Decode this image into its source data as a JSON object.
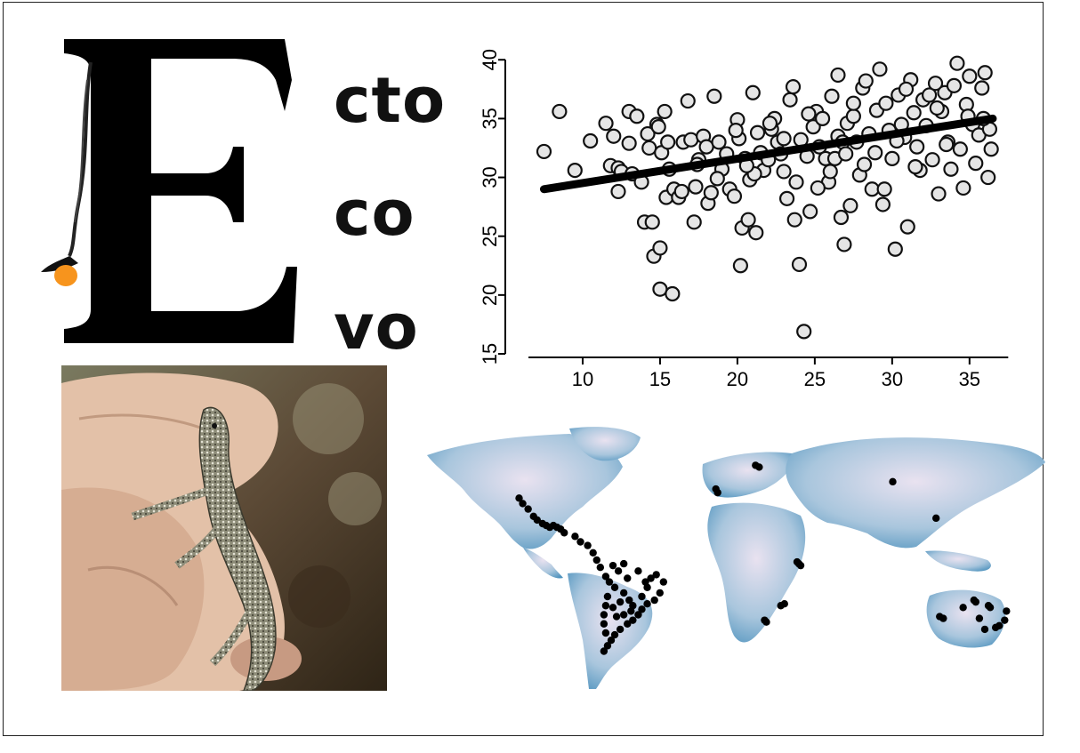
{
  "logo": {
    "letter": "E",
    "words": [
      "cto",
      "co",
      "vo"
    ]
  },
  "chart_data": {
    "type": "scatter",
    "xlim": [
      5,
      38
    ],
    "ylim": [
      15,
      41
    ],
    "xticks": [
      10,
      15,
      20,
      25,
      30,
      35
    ],
    "yticks": [
      15,
      20,
      25,
      30,
      35,
      40
    ],
    "trendline": {
      "x": [
        7.5,
        36.5
      ],
      "y": [
        29.0,
        35.0
      ]
    },
    "points": [
      [
        7.5,
        32.2
      ],
      [
        8.5,
        35.6
      ],
      [
        9.5,
        30.6
      ],
      [
        10.5,
        33.1
      ],
      [
        11.5,
        34.6
      ],
      [
        11.8,
        31.0
      ],
      [
        12.0,
        33.5
      ],
      [
        12.3,
        30.8
      ],
      [
        12.3,
        28.8
      ],
      [
        12.5,
        30.5
      ],
      [
        13.0,
        35.6
      ],
      [
        13.0,
        32.9
      ],
      [
        13.2,
        30.3
      ],
      [
        13.5,
        35.2
      ],
      [
        13.8,
        29.6
      ],
      [
        14.0,
        26.2
      ],
      [
        14.2,
        33.7
      ],
      [
        14.3,
        32.5
      ],
      [
        14.5,
        26.2
      ],
      [
        14.6,
        23.3
      ],
      [
        14.8,
        34.5
      ],
      [
        14.9,
        34.3
      ],
      [
        15.0,
        24.0
      ],
      [
        15.0,
        20.5
      ],
      [
        15.1,
        32.1
      ],
      [
        15.3,
        35.6
      ],
      [
        15.4,
        28.3
      ],
      [
        15.5,
        33.0
      ],
      [
        15.6,
        30.7
      ],
      [
        15.8,
        20.1
      ],
      [
        15.9,
        29.0
      ],
      [
        16.2,
        28.3
      ],
      [
        16.5,
        33.0
      ],
      [
        16.8,
        36.5
      ],
      [
        17.0,
        33.2
      ],
      [
        17.2,
        26.2
      ],
      [
        17.3,
        29.2
      ],
      [
        17.5,
        31.5
      ],
      [
        17.8,
        33.5
      ],
      [
        18.0,
        32.6
      ],
      [
        18.1,
        27.8
      ],
      [
        18.3,
        28.7
      ],
      [
        18.5,
        36.9
      ],
      [
        18.8,
        33.0
      ],
      [
        19.0,
        30.7
      ],
      [
        19.3,
        32.0
      ],
      [
        19.5,
        29.0
      ],
      [
        19.8,
        28.4
      ],
      [
        20.0,
        34.9
      ],
      [
        20.1,
        33.3
      ],
      [
        20.2,
        22.5
      ],
      [
        20.3,
        25.7
      ],
      [
        20.5,
        31.6
      ],
      [
        20.7,
        26.4
      ],
      [
        20.8,
        29.8
      ],
      [
        21.0,
        37.2
      ],
      [
        21.2,
        25.3
      ],
      [
        21.3,
        33.8
      ],
      [
        21.5,
        32.1
      ],
      [
        21.7,
        30.6
      ],
      [
        22.0,
        31.5
      ],
      [
        22.2,
        34.1
      ],
      [
        22.4,
        35.0
      ],
      [
        22.6,
        33.0
      ],
      [
        22.8,
        32.0
      ],
      [
        23.0,
        30.5
      ],
      [
        23.2,
        28.2
      ],
      [
        23.4,
        36.6
      ],
      [
        23.6,
        37.7
      ],
      [
        23.7,
        26.4
      ],
      [
        23.8,
        29.6
      ],
      [
        24.0,
        22.6
      ],
      [
        24.1,
        33.2
      ],
      [
        24.3,
        16.9
      ],
      [
        24.5,
        31.8
      ],
      [
        24.7,
        27.1
      ],
      [
        24.9,
        34.3
      ],
      [
        25.1,
        35.6
      ],
      [
        25.3,
        32.6
      ],
      [
        25.5,
        35.0
      ],
      [
        25.7,
        31.6
      ],
      [
        25.9,
        29.6
      ],
      [
        26.1,
        36.9
      ],
      [
        26.3,
        31.6
      ],
      [
        26.5,
        33.5
      ],
      [
        26.7,
        26.6
      ],
      [
        26.9,
        24.3
      ],
      [
        27.1,
        34.6
      ],
      [
        27.3,
        27.6
      ],
      [
        27.5,
        35.2
      ],
      [
        27.7,
        33.0
      ],
      [
        27.9,
        30.2
      ],
      [
        28.1,
        37.6
      ],
      [
        28.3,
        38.2
      ],
      [
        28.5,
        33.7
      ],
      [
        28.7,
        29.0
      ],
      [
        28.9,
        32.1
      ],
      [
        29.0,
        35.7
      ],
      [
        29.2,
        39.2
      ],
      [
        29.4,
        27.7
      ],
      [
        29.6,
        36.3
      ],
      [
        29.8,
        34.0
      ],
      [
        30.0,
        31.6
      ],
      [
        30.2,
        23.9
      ],
      [
        30.4,
        37.0
      ],
      [
        30.6,
        34.5
      ],
      [
        30.8,
        33.4
      ],
      [
        31.0,
        25.8
      ],
      [
        31.2,
        38.3
      ],
      [
        31.4,
        35.5
      ],
      [
        31.6,
        32.6
      ],
      [
        31.8,
        30.6
      ],
      [
        32.0,
        36.6
      ],
      [
        32.2,
        34.4
      ],
      [
        32.4,
        37.0
      ],
      [
        32.6,
        31.5
      ],
      [
        32.8,
        38.0
      ],
      [
        33.0,
        28.6
      ],
      [
        33.2,
        35.6
      ],
      [
        33.4,
        37.2
      ],
      [
        33.6,
        33.0
      ],
      [
        33.8,
        30.7
      ],
      [
        34.0,
        37.8
      ],
      [
        34.2,
        39.7
      ],
      [
        34.4,
        32.4
      ],
      [
        34.6,
        29.1
      ],
      [
        34.8,
        36.2
      ],
      [
        35.0,
        38.6
      ],
      [
        35.2,
        34.5
      ],
      [
        35.4,
        31.2
      ],
      [
        35.6,
        33.6
      ],
      [
        35.8,
        37.6
      ],
      [
        36.0,
        38.9
      ],
      [
        36.2,
        30.0
      ],
      [
        36.3,
        34.1
      ],
      [
        36.4,
        32.4
      ],
      [
        26.5,
        38.7
      ],
      [
        26.0,
        30.5
      ],
      [
        27.5,
        36.3
      ],
      [
        30.9,
        37.5
      ],
      [
        33.5,
        32.8
      ],
      [
        29.5,
        29.0
      ],
      [
        25.2,
        29.1
      ],
      [
        22.1,
        34.6
      ],
      [
        19.9,
        34.0
      ],
      [
        17.4,
        31.1
      ],
      [
        16.4,
        28.8
      ],
      [
        28.2,
        31.1
      ],
      [
        31.5,
        30.9
      ],
      [
        34.9,
        35.2
      ],
      [
        24.6,
        35.4
      ],
      [
        26.8,
        33.0
      ],
      [
        21.1,
        30.3
      ],
      [
        18.7,
        29.9
      ],
      [
        32.9,
        35.9
      ],
      [
        30.3,
        33.1
      ],
      [
        35.9,
        35.0
      ],
      [
        27.0,
        32.0
      ],
      [
        23.0,
        33.3
      ],
      [
        20.6,
        31.0
      ]
    ]
  },
  "map_data": {
    "points": [
      [
        -118,
        34
      ],
      [
        -116,
        31
      ],
      [
        -113,
        28
      ],
      [
        -110,
        24
      ],
      [
        -108,
        22
      ],
      [
        -105,
        20
      ],
      [
        -103,
        19
      ],
      [
        -101,
        18
      ],
      [
        -99,
        19
      ],
      [
        -97,
        18
      ],
      [
        -95,
        17
      ],
      [
        -93,
        15
      ],
      [
        -87,
        13
      ],
      [
        -84,
        10
      ],
      [
        -80,
        8
      ],
      [
        -77,
        4
      ],
      [
        -75,
        0
      ],
      [
        -73,
        -4
      ],
      [
        -70,
        -9
      ],
      [
        -68,
        -12
      ],
      [
        -65,
        -15
      ],
      [
        -60,
        -18
      ],
      [
        -57,
        -22
      ],
      [
        -55,
        -25
      ],
      [
        -50,
        -20
      ],
      [
        -47,
        -15
      ],
      [
        -45,
        -10
      ],
      [
        -42,
        -8
      ],
      [
        -38,
        -12
      ],
      [
        -40,
        -18
      ],
      [
        -43,
        -22
      ],
      [
        -47,
        -24
      ],
      [
        -50,
        -27
      ],
      [
        -52,
        -30
      ],
      [
        -55,
        -33
      ],
      [
        -58,
        -35
      ],
      [
        -62,
        -38
      ],
      [
        -65,
        -41
      ],
      [
        -67,
        -44
      ],
      [
        -69,
        -47
      ],
      [
        -71,
        -50
      ],
      [
        -70,
        -40
      ],
      [
        -71,
        -35
      ],
      [
        -71,
        -30
      ],
      [
        -70,
        -25
      ],
      [
        -69,
        -20
      ],
      [
        -66,
        -26
      ],
      [
        -64,
        -31
      ],
      [
        -60,
        -30
      ],
      [
        -56,
        -28
      ],
      [
        -62,
        -23
      ],
      [
        -48,
        -12
      ],
      [
        -52,
        -6
      ],
      [
        -58,
        -10
      ],
      [
        -63,
        -6
      ],
      [
        -66,
        -3
      ],
      [
        -60,
        -2
      ],
      [
        -9,
        39
      ],
      [
        -8,
        37
      ],
      [
        13,
        52
      ],
      [
        15,
        51
      ],
      [
        89,
        43
      ],
      [
        113,
        23
      ],
      [
        36,
        -1
      ],
      [
        37,
        -2
      ],
      [
        38,
        -3
      ],
      [
        29,
        -24
      ],
      [
        27,
        -25
      ],
      [
        18,
        -33
      ],
      [
        19,
        -34
      ],
      [
        134,
        -22
      ],
      [
        135,
        -23
      ],
      [
        128,
        -26
      ],
      [
        142,
        -25
      ],
      [
        143,
        -26
      ],
      [
        115,
        -31
      ],
      [
        117,
        -32
      ],
      [
        137,
        -32
      ],
      [
        148,
        -36
      ],
      [
        146,
        -37
      ],
      [
        152,
        -28
      ],
      [
        140,
        -38
      ],
      [
        151,
        -33
      ]
    ]
  }
}
